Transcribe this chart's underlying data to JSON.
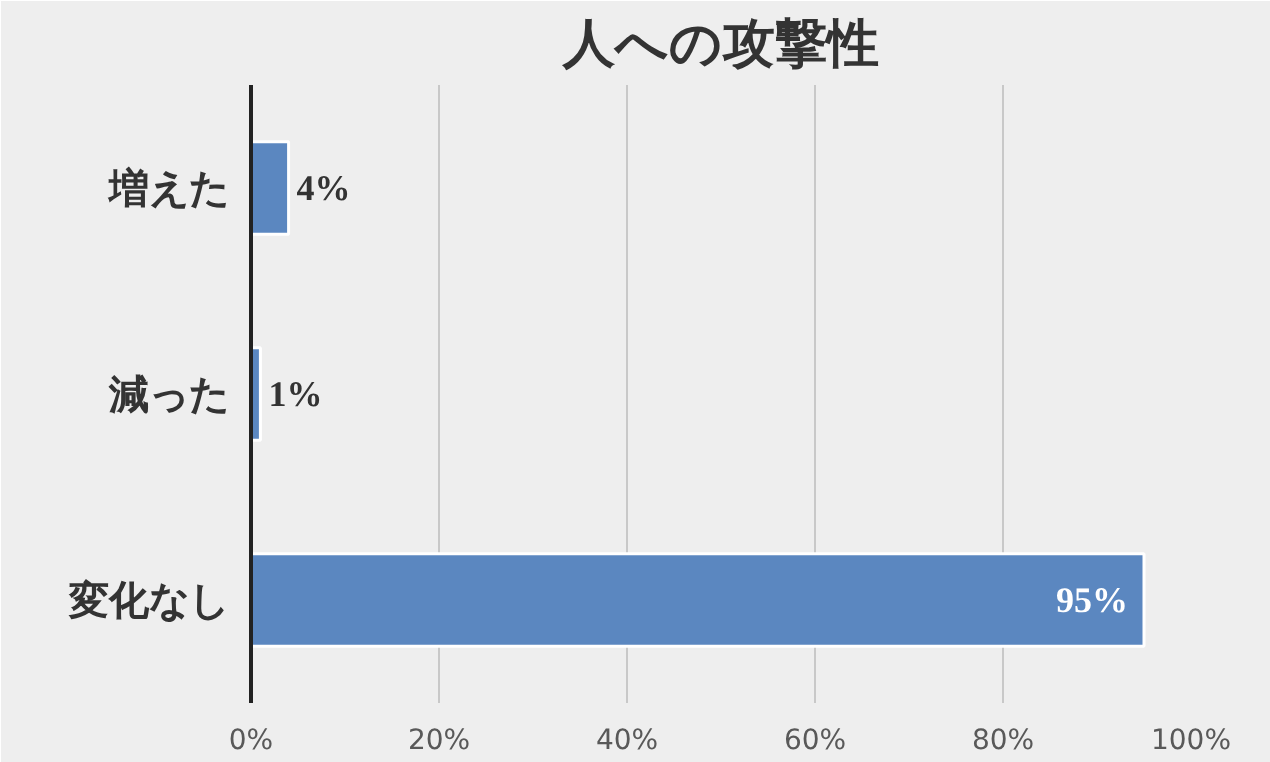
{
  "chart_data": {
    "type": "bar",
    "orientation": "horizontal",
    "title": "人への攻撃性",
    "categories": [
      "増えた",
      "減った",
      "変化なし"
    ],
    "values": [
      4,
      1,
      95
    ],
    "value_labels": [
      "4%",
      "1%",
      "95%"
    ],
    "color": "#5b87c0",
    "xlim": [
      0,
      100
    ],
    "xticks": [
      {
        "value": 0,
        "label": "0%"
      },
      {
        "value": 20,
        "label": "20%"
      },
      {
        "value": 40,
        "label": "40%"
      },
      {
        "value": 60,
        "label": "60%"
      },
      {
        "value": 80,
        "label": "80%"
      },
      {
        "value": 100,
        "label": "100%"
      }
    ],
    "grid": "x"
  }
}
